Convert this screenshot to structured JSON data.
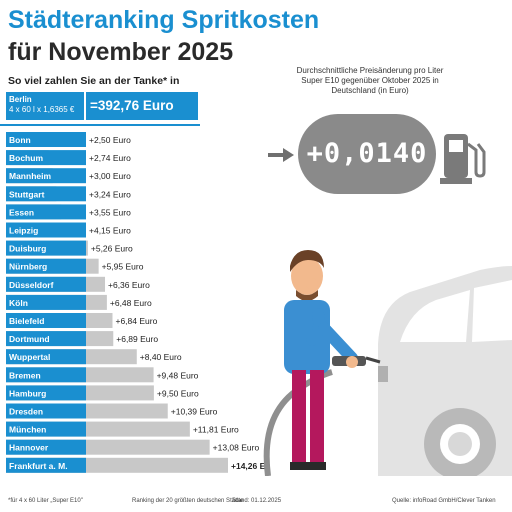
{
  "header": {
    "title_line1": "Städteranking Spritkosten",
    "title_line2": "für November 2025",
    "subtitle": "So viel zahlen Sie an der Tanke* in"
  },
  "base": {
    "city": "Berlin",
    "formula": "4 x 60 l x 1,6365 €",
    "value": "=392,76 Euro"
  },
  "info": {
    "text": "Durchschnittliche Preisänderung pro Liter Super E10 gegenüber Oktober 2025 in Deutschland (in Euro)",
    "display": "+0,0140"
  },
  "icons": {
    "arrow": "arrow-right-icon",
    "pump": "fuel-pump-icon",
    "illustration": "man-refueling-car-illustration"
  },
  "colors": {
    "accent": "#1a8fd0",
    "bar": "#c8c8c8",
    "display_bg": "#8a8a8a",
    "car": "#e3e3e3"
  },
  "chart_data": {
    "type": "bar",
    "orientation": "horizontal",
    "categories": [
      "Bonn",
      "Bochum",
      "Mannheim",
      "Stuttgart",
      "Essen",
      "Leipzig",
      "Duisburg",
      "Nürnberg",
      "Düsseldorf",
      "Köln",
      "Bielefeld",
      "Dortmund",
      "Wuppertal",
      "Bremen",
      "Hamburg",
      "Dresden",
      "München",
      "Hannover",
      "Frankfurt a. M."
    ],
    "values": [
      2.5,
      2.74,
      3.0,
      3.24,
      3.55,
      4.15,
      5.26,
      5.95,
      6.36,
      6.48,
      6.84,
      6.89,
      8.4,
      9.48,
      9.5,
      10.39,
      11.81,
      13.08,
      14.26
    ],
    "labels": [
      "+2,50 Euro",
      "+2,74 Euro",
      "+3,00 Euro",
      "+3,24 Euro",
      "+3,55 Euro",
      "+4,15 Euro",
      "+5,26 Euro",
      "+5,95 Euro",
      "+6,36 Euro",
      "+6,48 Euro",
      "+6,84 Euro",
      "+6,89 Euro",
      "+8,40 Euro",
      "+9,48 Euro",
      "+9,50 Euro",
      "+10,39 Euro",
      "+11,81 Euro",
      "+13,08 Euro",
      "+14,26 Euro"
    ],
    "highlight_last": true
  },
  "footer": {
    "note": "*für 4 x 60 Liter „Super E10\"",
    "ranking": "Ranking der 20 größten deutschen Städte",
    "date": "Stand: 01.12.2025",
    "source": "Quelle: infoRoad GmbH/Clever Tanken"
  }
}
